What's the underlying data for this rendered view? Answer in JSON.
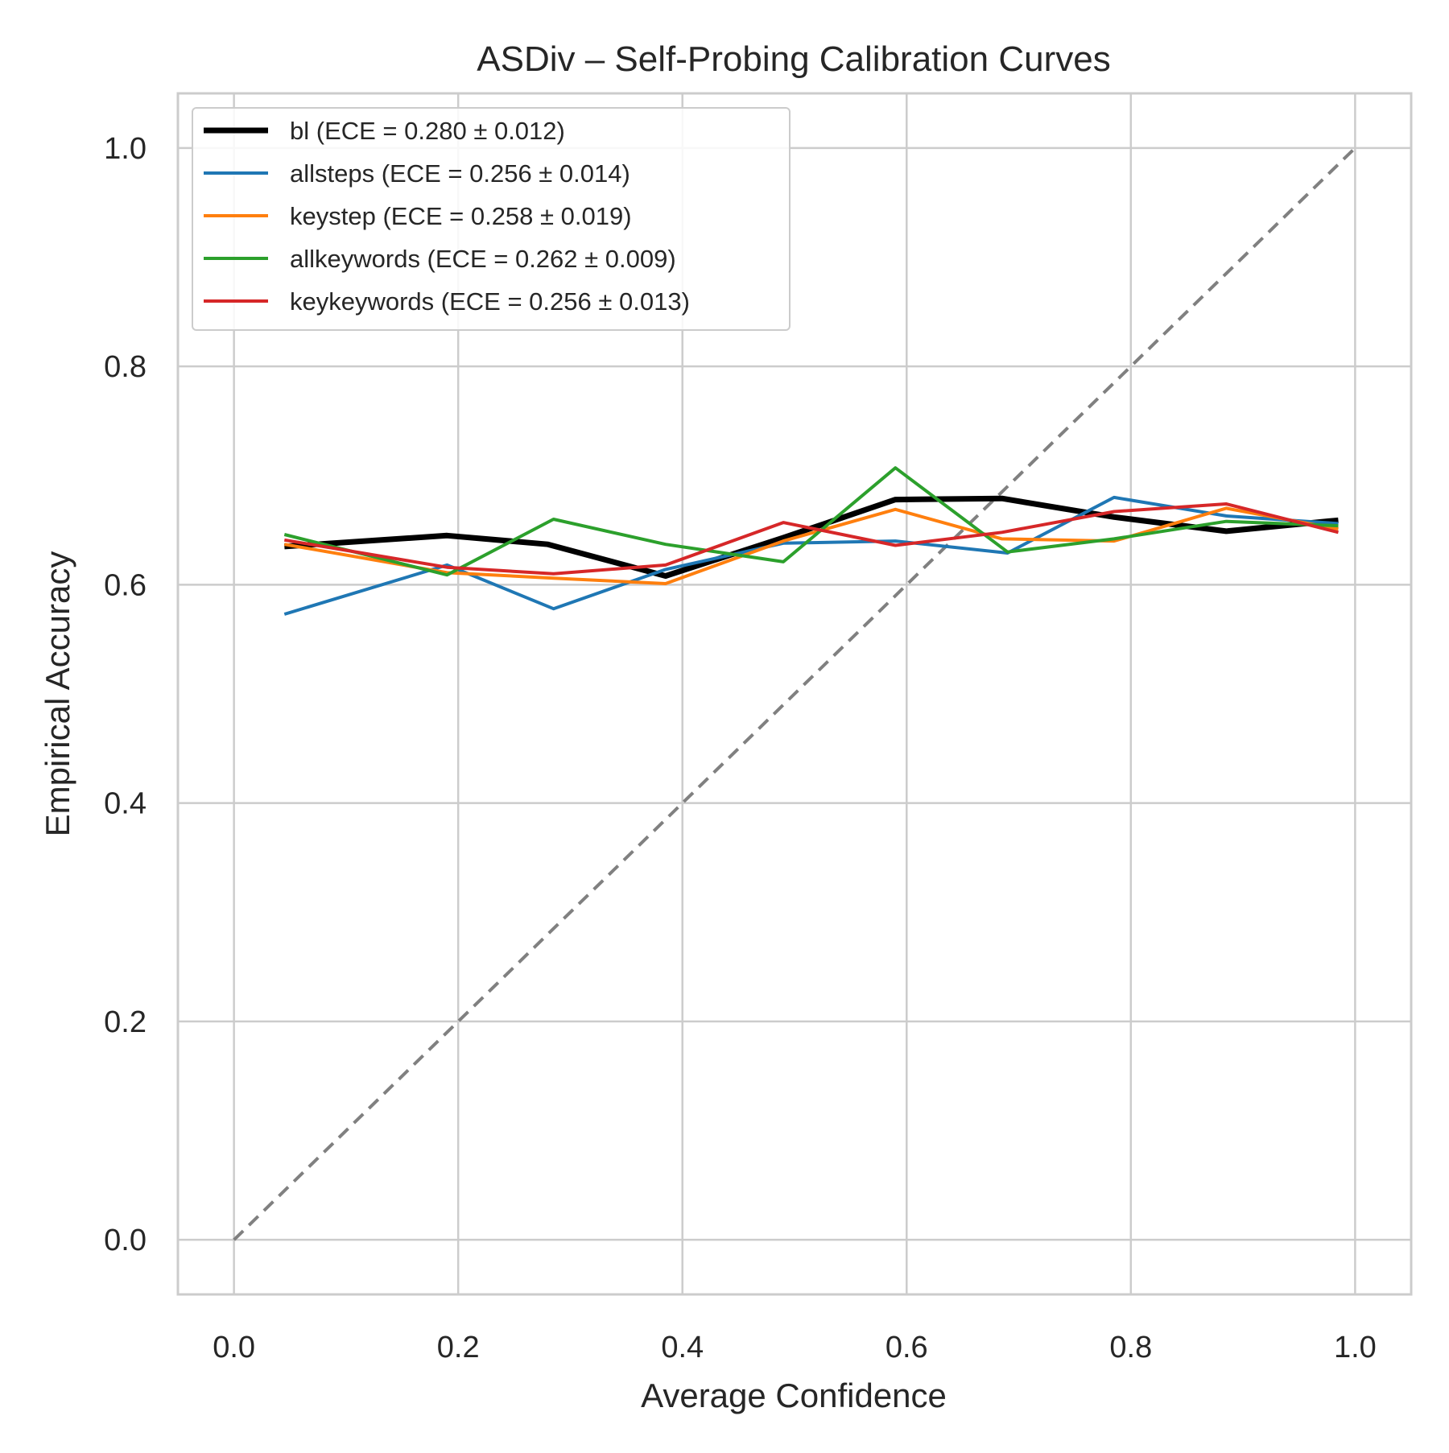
{
  "chart_data": {
    "type": "line",
    "title": "ASDiv – Self-Probing Calibration Curves",
    "xlabel": "Average Confidence",
    "ylabel": "Empirical Accuracy",
    "xlim": [
      -0.05,
      1.05
    ],
    "ylim": [
      -0.05,
      1.05
    ],
    "xticks": [
      "0.0",
      "0.2",
      "0.4",
      "0.6",
      "0.8",
      "1.0"
    ],
    "yticks": [
      "0.0",
      "0.2",
      "0.4",
      "0.6",
      "0.8",
      "1.0"
    ],
    "grid": true,
    "legend_position": "upper-left",
    "reference_line": {
      "style": "dashed",
      "color": "#808080",
      "x": [
        0,
        1
      ],
      "y": [
        0,
        1
      ]
    },
    "series": [
      {
        "name": "bl (ECE = 0.280 ± 0.012)",
        "color": "#000000",
        "bold": true,
        "x": [
          0.045,
          0.19,
          0.28,
          0.385,
          0.49,
          0.59,
          0.685,
          0.785,
          0.885,
          0.985
        ],
        "y": [
          0.635,
          0.645,
          0.637,
          0.608,
          0.643,
          0.678,
          0.679,
          0.662,
          0.649,
          0.659
        ]
      },
      {
        "name": "allsteps (ECE = 0.256 ± 0.014)",
        "color": "#1f77b4",
        "bold": false,
        "x": [
          0.045,
          0.19,
          0.285,
          0.385,
          0.49,
          0.59,
          0.69,
          0.785,
          0.885,
          0.985
        ],
        "y": [
          0.573,
          0.618,
          0.578,
          0.614,
          0.638,
          0.64,
          0.629,
          0.68,
          0.663,
          0.656
        ]
      },
      {
        "name": "keystep (ECE = 0.258 ± 0.019)",
        "color": "#ff7f0e",
        "bold": false,
        "x": [
          0.045,
          0.19,
          0.285,
          0.385,
          0.49,
          0.59,
          0.685,
          0.785,
          0.885,
          0.985
        ],
        "y": [
          0.637,
          0.611,
          0.606,
          0.601,
          0.64,
          0.669,
          0.642,
          0.64,
          0.67,
          0.651
        ]
      },
      {
        "name": "allkeywords (ECE = 0.262 ± 0.009)",
        "color": "#2ca02c",
        "bold": false,
        "x": [
          0.045,
          0.19,
          0.285,
          0.385,
          0.49,
          0.59,
          0.69,
          0.785,
          0.885,
          0.985
        ],
        "y": [
          0.646,
          0.609,
          0.66,
          0.637,
          0.621,
          0.707,
          0.63,
          0.642,
          0.658,
          0.654
        ]
      },
      {
        "name": "keykeywords (ECE = 0.256 ± 0.013)",
        "color": "#d62728",
        "bold": false,
        "x": [
          0.045,
          0.19,
          0.285,
          0.385,
          0.49,
          0.59,
          0.685,
          0.785,
          0.885,
          0.985
        ],
        "y": [
          0.641,
          0.616,
          0.61,
          0.618,
          0.657,
          0.636,
          0.648,
          0.667,
          0.674,
          0.648
        ]
      }
    ]
  }
}
